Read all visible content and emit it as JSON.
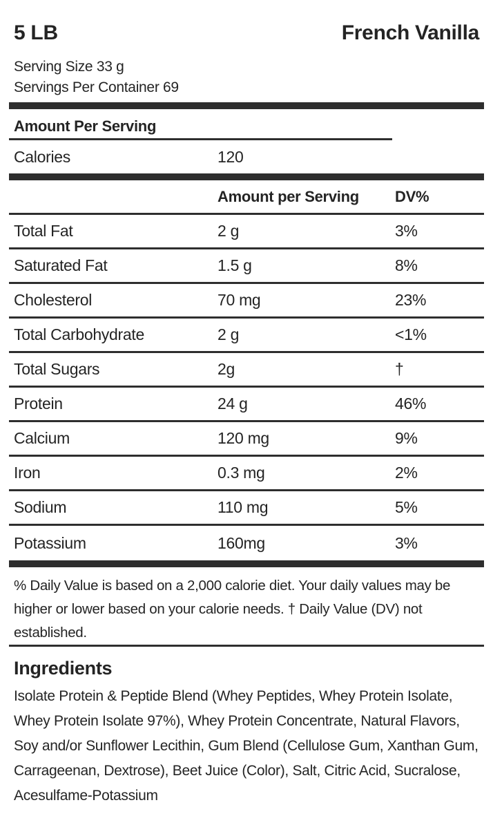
{
  "header": {
    "size": "5 LB",
    "flavor": "French Vanilla",
    "serving_size": "Serving Size 33 g",
    "servings_per_container": "Servings Per Container 69"
  },
  "calories_section": {
    "heading": "Amount Per Serving",
    "label": "Calories",
    "value": "120"
  },
  "nutrients_table": {
    "columns": [
      "",
      "Amount per Serving",
      "DV%"
    ],
    "rows": [
      {
        "label": "Total Fat",
        "amount": "2 g",
        "dv": "3%"
      },
      {
        "label": "Saturated Fat",
        "amount": "1.5 g",
        "dv": "8%"
      },
      {
        "label": "Cholesterol",
        "amount": "70 mg",
        "dv": "23%"
      },
      {
        "label": "Total Carbohydrate",
        "amount": "2 g",
        "dv": "<1%"
      },
      {
        "label": "Total Sugars",
        "amount": "2g",
        "dv": "†"
      },
      {
        "label": "Protein",
        "amount": "24 g",
        "dv": "46%"
      },
      {
        "label": "Calcium",
        "amount": "120 mg",
        "dv": "9%"
      },
      {
        "label": "Iron",
        "amount": "0.3 mg",
        "dv": "2%"
      },
      {
        "label": "Sodium",
        "amount": "110 mg",
        "dv": "5%"
      },
      {
        "label": "Potassium",
        "amount": "160mg",
        "dv": "3%"
      }
    ]
  },
  "footnote": "% Daily Value is based on a 2,000 calorie diet. Your daily values may be higher or lower based on your calorie needs. † Daily Value (DV) not established.",
  "ingredients": {
    "heading": "Ingredients",
    "text": "Isolate Protein & Peptide Blend (Whey Peptides, Whey Protein Isolate, Whey Protein Isolate 97%), Whey Protein Concentrate, Natural Flavors, Soy and/or Sunflower Lecithin, Gum Blend (Cellulose Gum, Xanthan Gum, Carrageenan, Dextrose), Beet Juice (Color), Salt, Citric Acid, Sucralose, Acesulfame-Potassium"
  },
  "colors": {
    "text": "#242424",
    "rule": "#2e2e2e",
    "background": "#ffffff"
  }
}
